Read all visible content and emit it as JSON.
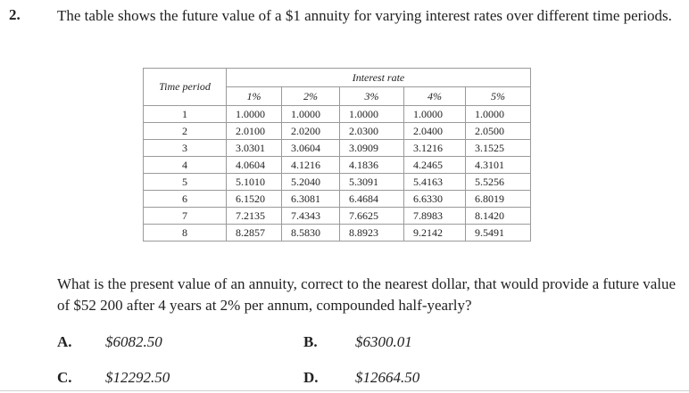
{
  "question": {
    "number": "2.",
    "intro": "The table shows the future value of a $1 annuity for varying interest rates over different time periods.",
    "text": "What is the present value of an annuity, correct to the nearest dollar, that would provide a future value of $52 200 after 4 years at 2% per annum, compounded half-yearly?"
  },
  "table": {
    "time_period_header": "Time period",
    "interest_rate_header": "Interest rate",
    "rates": [
      "1%",
      "2%",
      "3%",
      "4%",
      "5%"
    ],
    "rows": [
      {
        "period": "1",
        "values": [
          "1.0000",
          "1.0000",
          "1.0000",
          "1.0000",
          "1.0000"
        ]
      },
      {
        "period": "2",
        "values": [
          "2.0100",
          "2.0200",
          "2.0300",
          "2.0400",
          "2.0500"
        ]
      },
      {
        "period": "3",
        "values": [
          "3.0301",
          "3.0604",
          "3.0909",
          "3.1216",
          "3.1525"
        ]
      },
      {
        "period": "4",
        "values": [
          "4.0604",
          "4.1216",
          "4.1836",
          "4.2465",
          "4.3101"
        ]
      },
      {
        "period": "5",
        "values": [
          "5.1010",
          "5.2040",
          "5.3091",
          "5.4163",
          "5.5256"
        ]
      },
      {
        "period": "6",
        "values": [
          "6.1520",
          "6.3081",
          "6.4684",
          "6.6330",
          "6.8019"
        ]
      },
      {
        "period": "7",
        "values": [
          "7.2135",
          "7.4343",
          "7.6625",
          "7.8983",
          "8.1420"
        ]
      },
      {
        "period": "8",
        "values": [
          "8.2857",
          "8.5830",
          "8.8923",
          "9.2142",
          "9.5491"
        ]
      }
    ]
  },
  "options": [
    {
      "label": "A.",
      "text": "$6082.50"
    },
    {
      "label": "B.",
      "text": "$6300.01"
    },
    {
      "label": "C.",
      "text": "$12292.50"
    },
    {
      "label": "D.",
      "text": "$12664.50"
    }
  ]
}
